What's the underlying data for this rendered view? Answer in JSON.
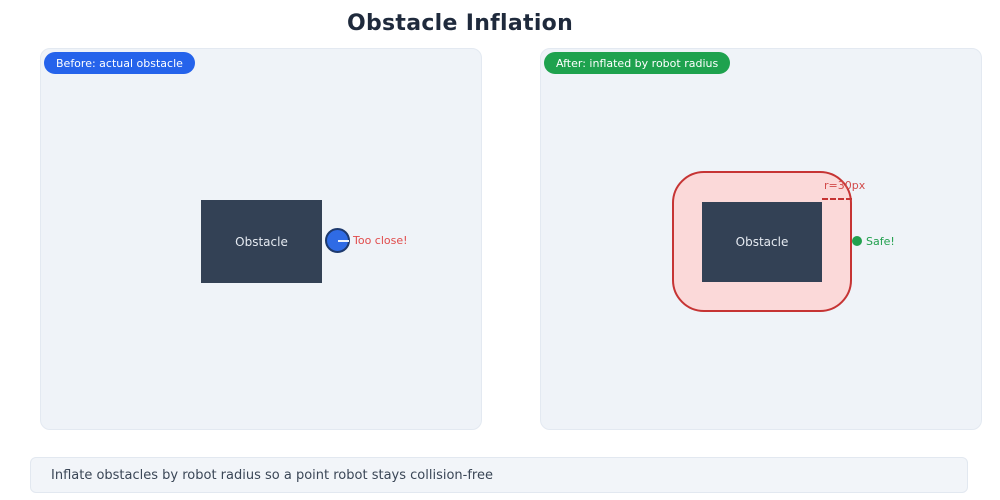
{
  "title": "Obstacle Inflation",
  "caption": "Inflate obstacles by robot radius so a point robot stays collision-free",
  "before_panel": {
    "badge_label": "Before: actual obstacle",
    "obstacle_label": "Obstacle",
    "warning_label": "Too close!"
  },
  "after_panel": {
    "badge_label": "After: inflated by robot radius",
    "obstacle_label": "Obstacle",
    "radius_label": "r=30px",
    "safe_label": "Safe!"
  },
  "icons": {
    "robot": "blue circle with white radius line",
    "safe_dot": "small green filled circle"
  },
  "colors": {
    "before_badge": "#2563eb",
    "after_badge": "#1ea24e",
    "obstacle_fill": "#334155",
    "obstacle_text": "#e5eaf1",
    "robot_fill": "#2f6be5",
    "robot_border": "#1e3a6e",
    "inflated_fill": "#fbd9d9",
    "inflated_border": "#c63434",
    "warning_text": "#e14b4b",
    "safe_text": "#22a04e",
    "radius_label_text": "#d24a4a",
    "panel_background": "#eff3f8",
    "caption_background": "#f2f5f9",
    "title_text": "#1f2a3c"
  }
}
